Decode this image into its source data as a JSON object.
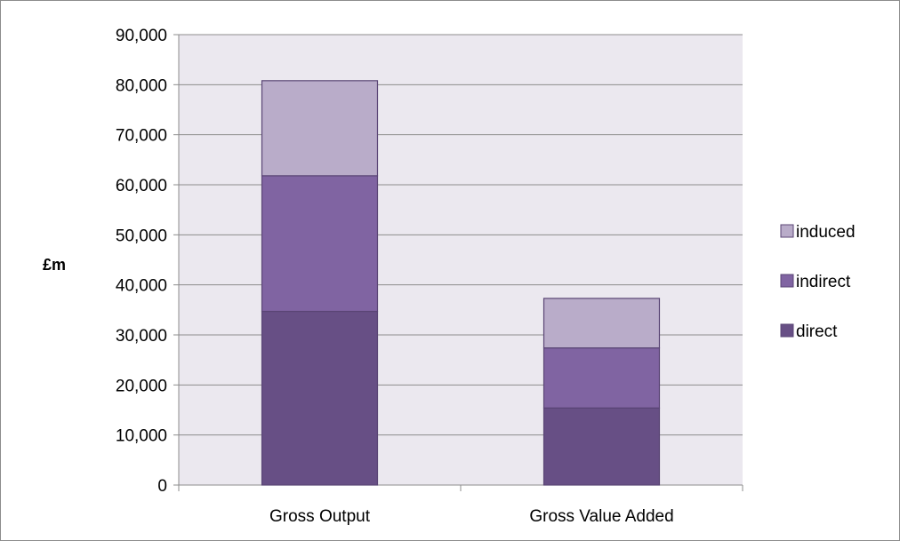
{
  "chart_data": {
    "type": "bar",
    "stacked": true,
    "title": "",
    "xlabel": "",
    "ylabel": "£m",
    "ylim": [
      0,
      90000
    ],
    "ytick_step": 10000,
    "y_ticks": [
      "0",
      "10,000",
      "20,000",
      "30,000",
      "40,000",
      "50,000",
      "60,000",
      "70,000",
      "80,000",
      "90,000"
    ],
    "categories": [
      "Gross Output",
      "Gross Value Added"
    ],
    "series": [
      {
        "name": "direct",
        "values": [
          34700,
          15400
        ],
        "color": "#674f85"
      },
      {
        "name": "indirect",
        "values": [
          27100,
          12000
        ],
        "color": "#8064a2"
      },
      {
        "name": "induced",
        "values": [
          19000,
          9900
        ],
        "color": "#b9acc9"
      }
    ],
    "legend_order": [
      "induced",
      "indirect",
      "direct"
    ],
    "legend_position": "right",
    "grid": true,
    "plot_background": "#ebe8ef",
    "gridline_color": "#8c8c8c",
    "bar_edge_color": "#5a4575"
  }
}
